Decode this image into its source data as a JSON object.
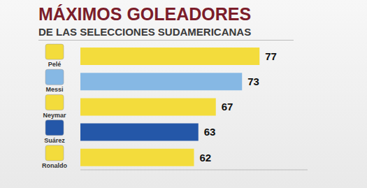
{
  "chart_data": {
    "type": "bar",
    "title": "MÁXIMOS GOLEADORES",
    "subtitle": "DE LAS SELECCIONES SUDAMERICANAS",
    "orientation": "horizontal",
    "categories": [
      "Pelé",
      "Messi",
      "Neymar",
      "Suárez",
      "Ronaldo"
    ],
    "values": [
      77,
      73,
      67,
      63,
      62
    ],
    "colors": [
      "#f3dc3c",
      "#86b8e4",
      "#f3dc3c",
      "#2457a8",
      "#f3dc3c"
    ],
    "xlim": [
      36,
      88
    ],
    "tick_labels": false,
    "data_labels": true,
    "grid": false
  }
}
